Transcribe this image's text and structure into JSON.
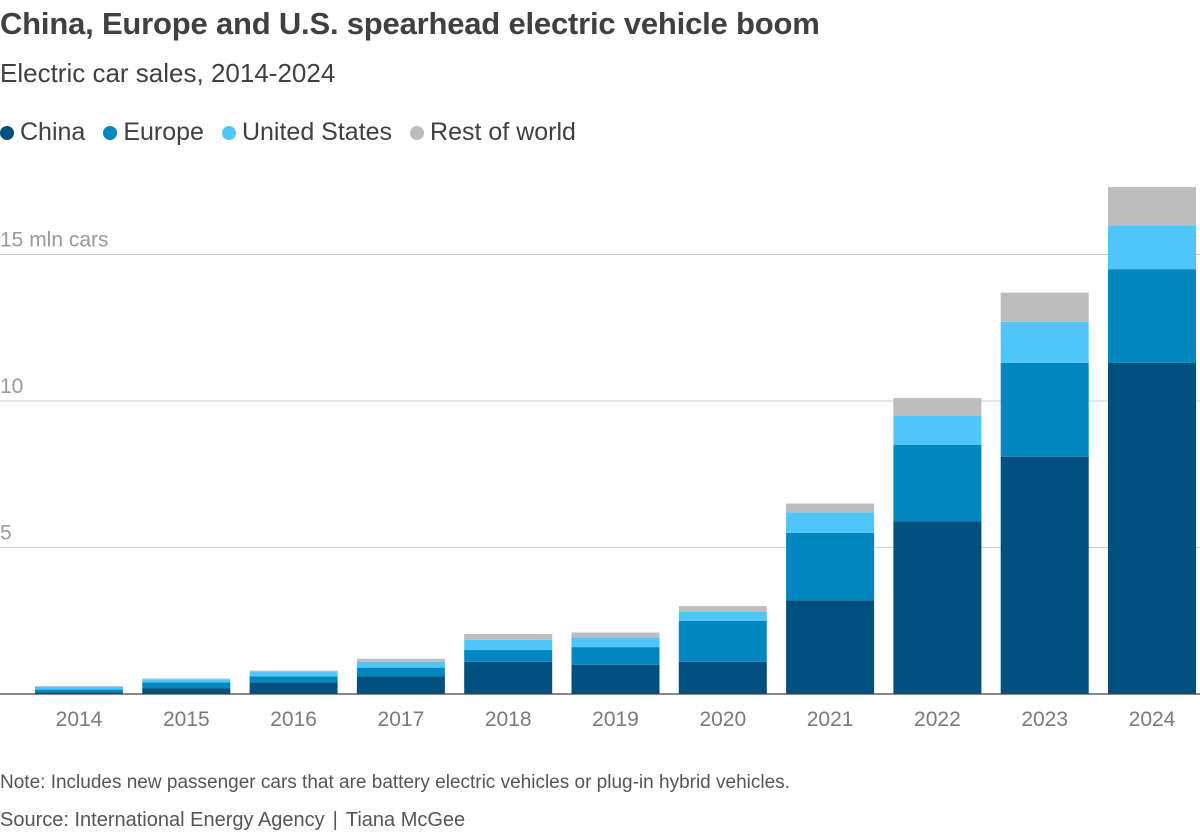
{
  "header": {
    "title": "China, Europe and U.S. spearhead electric vehicle boom",
    "subtitle": "Electric car sales, 2014-2024"
  },
  "legend": [
    {
      "label": "China",
      "color": "#00507f"
    },
    {
      "label": "Europe",
      "color": "#0187c0"
    },
    {
      "label": "United States",
      "color": "#4fc5f8"
    },
    {
      "label": "Rest of world",
      "color": "#bdbdbd"
    }
  ],
  "footer": {
    "note": "Note: Includes new passenger cars that are battery electric vehicles or plug-in hybrid vehicles.",
    "source": "Source: International Energy Agency",
    "credit": "Tiana McGee"
  },
  "chart_data": {
    "type": "bar",
    "stacked": true,
    "title": "China, Europe and U.S. spearhead electric vehicle boom",
    "subtitle": "Electric car sales, 2014-2024",
    "xlabel": "",
    "ylabel": "mln cars",
    "ylim": [
      0,
      17.5
    ],
    "y_ticks": [
      {
        "value": 5,
        "label": "5"
      },
      {
        "value": 10,
        "label": "10"
      },
      {
        "value": 15,
        "label": "15 mln cars"
      }
    ],
    "grid": true,
    "categories": [
      "2014",
      "2015",
      "2016",
      "2017",
      "2018",
      "2019",
      "2020",
      "2021",
      "2022",
      "2023",
      "2024"
    ],
    "series": [
      {
        "name": "China",
        "color": "#00507f",
        "values": [
          0.05,
          0.2,
          0.4,
          0.6,
          1.1,
          1.0,
          1.1,
          3.2,
          5.9,
          8.1,
          11.3
        ]
      },
      {
        "name": "Europe",
        "color": "#0187c0",
        "values": [
          0.1,
          0.2,
          0.2,
          0.3,
          0.4,
          0.6,
          1.4,
          2.3,
          2.6,
          3.2,
          3.2
        ]
      },
      {
        "name": "United States",
        "color": "#4fc5f8",
        "values": [
          0.1,
          0.1,
          0.15,
          0.2,
          0.35,
          0.33,
          0.3,
          0.7,
          1.0,
          1.4,
          1.5
        ]
      },
      {
        "name": "Rest of world",
        "color": "#bdbdbd",
        "values": [
          0.02,
          0.03,
          0.05,
          0.1,
          0.2,
          0.17,
          0.2,
          0.3,
          0.6,
          1.0,
          1.3
        ]
      }
    ]
  }
}
